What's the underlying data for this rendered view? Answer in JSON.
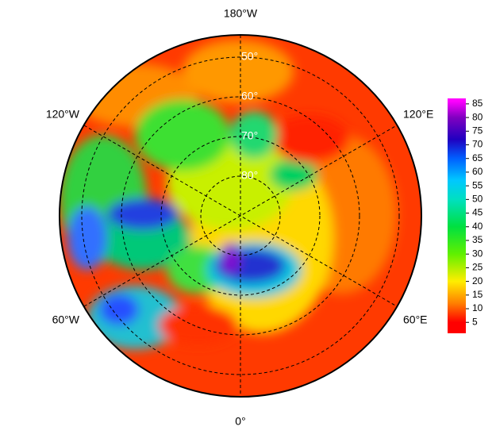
{
  "map": {
    "meridian_labels": [
      "180°W",
      "120°E",
      "60°E",
      "0°",
      "60°W",
      "120°W"
    ],
    "parallel_labels": [
      "50°",
      "60°",
      "70°",
      "80°"
    ],
    "colorbar": {
      "lim": [
        1,
        87
      ],
      "ticks": [
        5,
        10,
        15,
        20,
        25,
        30,
        35,
        40,
        45,
        50,
        55,
        60,
        65,
        70,
        75,
        80,
        85
      ]
    }
  }
}
